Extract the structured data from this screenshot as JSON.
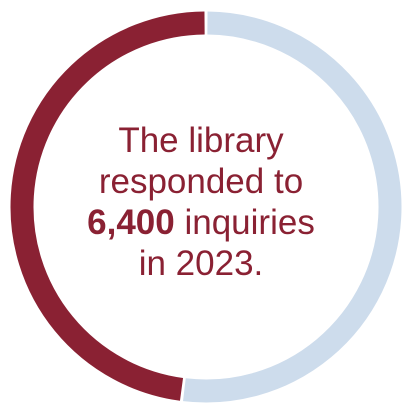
{
  "chart_data": {
    "type": "pie",
    "style": "donut",
    "slices": [
      {
        "label": "",
        "value": 48,
        "color": "#8a2133"
      },
      {
        "label": "",
        "value": 52,
        "color": "#cddcec"
      }
    ],
    "title": "",
    "center_text": {
      "line1": "The library",
      "line2": "responded to",
      "number": "6,400",
      "line3_rest": " inquiries",
      "line4": "in 2023."
    },
    "legend": "none"
  }
}
